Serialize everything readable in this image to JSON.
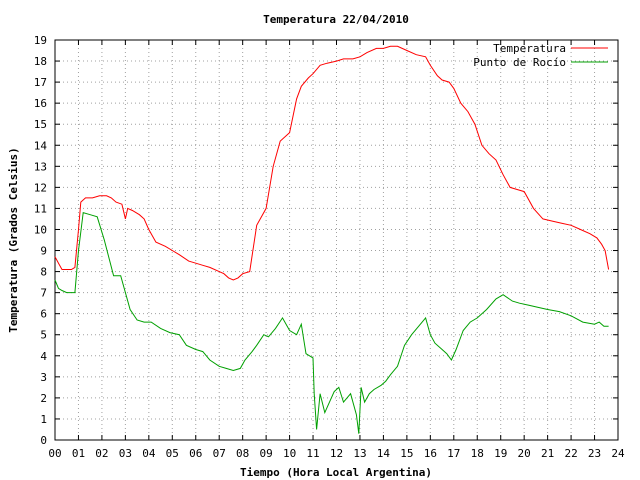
{
  "chart_data": {
    "type": "line",
    "title": "Temperatura 22/04/2010",
    "xlabel": "Tiempo (Hora Local Argentina)",
    "ylabel": "Temperatura (Grados Celsius)",
    "xlim": [
      0,
      24
    ],
    "ylim": [
      0,
      19
    ],
    "xticks": [
      "00",
      "01",
      "02",
      "03",
      "04",
      "05",
      "06",
      "07",
      "08",
      "09",
      "10",
      "11",
      "12",
      "13",
      "14",
      "15",
      "16",
      "17",
      "18",
      "19",
      "20",
      "21",
      "22",
      "23",
      "24"
    ],
    "yticks": [
      "0",
      "1",
      "2",
      "3",
      "4",
      "5",
      "6",
      "7",
      "8",
      "9",
      "10",
      "11",
      "12",
      "13",
      "14",
      "15",
      "16",
      "17",
      "18",
      "19"
    ],
    "grid": true,
    "legend_position": "top-right",
    "series": [
      {
        "name": "Temperatura",
        "color": "#ff0000",
        "x": [
          0.0,
          0.15,
          0.3,
          0.5,
          0.7,
          0.85,
          1.0,
          1.1,
          1.3,
          1.6,
          1.9,
          2.2,
          2.4,
          2.6,
          2.85,
          3.0,
          3.1,
          3.3,
          3.6,
          3.8,
          4.0,
          4.3,
          4.7,
          5.0,
          5.3,
          5.7,
          6.0,
          6.3,
          6.6,
          7.0,
          7.2,
          7.4,
          7.6,
          7.8,
          8.0,
          8.3,
          8.6,
          9.0,
          9.3,
          9.6,
          10.0,
          10.3,
          10.5,
          10.8,
          11.0,
          11.3,
          11.6,
          12.0,
          12.3,
          12.7,
          13.0,
          13.3,
          13.7,
          14.0,
          14.3,
          14.6,
          15.0,
          15.4,
          15.8,
          16.0,
          16.3,
          16.5,
          16.8,
          17.0,
          17.3,
          17.6,
          17.9,
          18.2,
          18.5,
          18.8,
          19.1,
          19.4,
          19.7,
          20.0,
          20.4,
          20.8,
          21.2,
          21.6,
          22.0,
          22.4,
          22.8,
          23.1,
          23.3,
          23.45,
          23.6
        ],
        "values": [
          8.7,
          8.4,
          8.1,
          8.1,
          8.1,
          8.2,
          10.0,
          11.3,
          11.5,
          11.5,
          11.6,
          11.6,
          11.5,
          11.3,
          11.2,
          10.5,
          11.0,
          10.9,
          10.7,
          10.5,
          10.0,
          9.4,
          9.2,
          9.0,
          8.8,
          8.5,
          8.4,
          8.3,
          8.2,
          8.0,
          7.9,
          7.7,
          7.6,
          7.7,
          7.9,
          8.0,
          10.2,
          11.0,
          13.0,
          14.2,
          14.6,
          16.2,
          16.8,
          17.2,
          17.4,
          17.8,
          17.9,
          18.0,
          18.1,
          18.1,
          18.2,
          18.4,
          18.6,
          18.6,
          18.7,
          18.7,
          18.5,
          18.3,
          18.2,
          17.8,
          17.3,
          17.1,
          17.0,
          16.7,
          16.0,
          15.6,
          15.0,
          14.0,
          13.6,
          13.3,
          12.6,
          12.0,
          11.9,
          11.8,
          11.0,
          10.5,
          10.4,
          10.3,
          10.2,
          10.0,
          9.8,
          9.6,
          9.3,
          9.0,
          8.1
        ]
      },
      {
        "name": "Punto de Rocío",
        "color": "#00a000",
        "x": [
          0.0,
          0.15,
          0.3,
          0.5,
          0.7,
          0.85,
          1.0,
          1.2,
          1.5,
          1.8,
          2.1,
          2.5,
          2.8,
          3.0,
          3.2,
          3.5,
          3.8,
          4.1,
          4.5,
          4.9,
          5.3,
          5.6,
          6.0,
          6.3,
          6.6,
          7.0,
          7.3,
          7.6,
          7.9,
          8.1,
          8.4,
          8.6,
          8.9,
          9.1,
          9.4,
          9.7,
          10.0,
          10.3,
          10.5,
          10.7,
          11.0,
          11.05,
          11.15,
          11.3,
          11.5,
          11.7,
          11.9,
          12.1,
          12.3,
          12.6,
          12.85,
          12.95,
          13.05,
          13.2,
          13.4,
          13.6,
          13.9,
          14.1,
          14.3,
          14.6,
          14.9,
          15.2,
          15.5,
          15.8,
          16.0,
          16.2,
          16.5,
          16.7,
          16.9,
          17.1,
          17.4,
          17.7,
          18.0,
          18.4,
          18.8,
          19.1,
          19.5,
          19.8,
          20.2,
          20.6,
          21.0,
          21.5,
          22.0,
          22.5,
          23.0,
          23.2,
          23.4,
          23.6
        ],
        "values": [
          7.6,
          7.2,
          7.1,
          7.0,
          7.0,
          7.0,
          9.0,
          10.8,
          10.7,
          10.6,
          9.5,
          7.8,
          7.8,
          7.0,
          6.2,
          5.7,
          5.6,
          5.6,
          5.3,
          5.1,
          5.0,
          4.5,
          4.3,
          4.2,
          3.8,
          3.5,
          3.4,
          3.3,
          3.4,
          3.8,
          4.2,
          4.5,
          5.0,
          4.9,
          5.3,
          5.8,
          5.2,
          5.0,
          5.5,
          4.1,
          3.9,
          2.2,
          0.5,
          2.2,
          1.3,
          1.8,
          2.3,
          2.5,
          1.8,
          2.2,
          1.2,
          0.3,
          2.5,
          1.8,
          2.2,
          2.4,
          2.6,
          2.8,
          3.1,
          3.5,
          4.5,
          5.0,
          5.4,
          5.8,
          5.0,
          4.6,
          4.3,
          4.1,
          3.8,
          4.3,
          5.2,
          5.6,
          5.8,
          6.2,
          6.7,
          6.9,
          6.6,
          6.5,
          6.4,
          6.3,
          6.2,
          6.1,
          5.9,
          5.6,
          5.5,
          5.6,
          5.4,
          5.4
        ]
      }
    ]
  }
}
